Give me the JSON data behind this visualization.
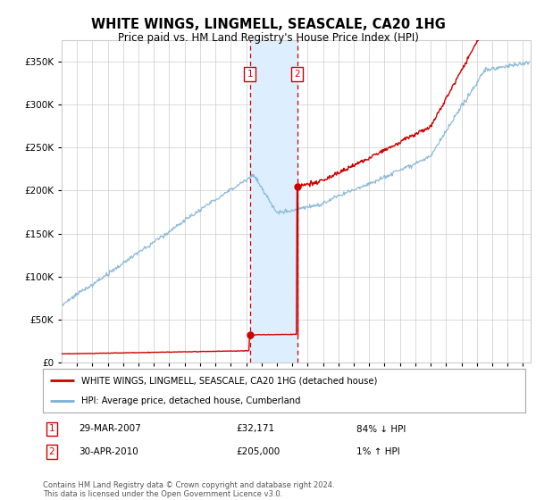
{
  "title": "WHITE WINGS, LINGMELL, SEASCALE, CA20 1HG",
  "subtitle": "Price paid vs. HM Land Registry's House Price Index (HPI)",
  "ytick_values": [
    0,
    50000,
    100000,
    150000,
    200000,
    250000,
    300000,
    350000
  ],
  "ylim": [
    0,
    375000
  ],
  "xlim_start": 1995.0,
  "xlim_end": 2025.5,
  "sale1_x": 2007.24,
  "sale1_y": 32171,
  "sale2_x": 2010.33,
  "sale2_y": 205000,
  "property_line_color": "#cc0000",
  "hpi_line_color": "#7ab0d4",
  "shade_color": "#ddeeff",
  "dashed_line_color": "#cc0000",
  "grid_color": "#cccccc",
  "background_color": "#ffffff",
  "legend_label1": "WHITE WINGS, LINGMELL, SEASCALE, CA20 1HG (detached house)",
  "legend_label2": "HPI: Average price, detached house, Cumberland",
  "footer": "Contains HM Land Registry data © Crown copyright and database right 2024.\nThis data is licensed under the Open Government Licence v3.0."
}
